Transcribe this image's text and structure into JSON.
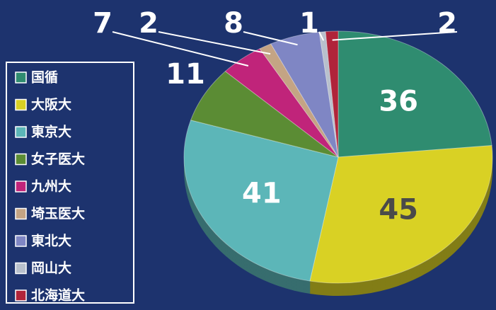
{
  "chart_data": {
    "type": "pie",
    "categories": [
      "国循",
      "大阪大",
      "東京大",
      "女子医大",
      "九州大",
      "埼玉医大",
      "東北大",
      "岡山大",
      "北海道大"
    ],
    "values": [
      36,
      45,
      41,
      11,
      7,
      2,
      8,
      1,
      2
    ],
    "colors": [
      "#2f8c70",
      "#d9d124",
      "#5cb6b8",
      "#5b8c34",
      "#c0247a",
      "#c4a484",
      "#7f86c4",
      "#b8c0cc",
      "#b0243a"
    ],
    "legend": "left"
  }
}
